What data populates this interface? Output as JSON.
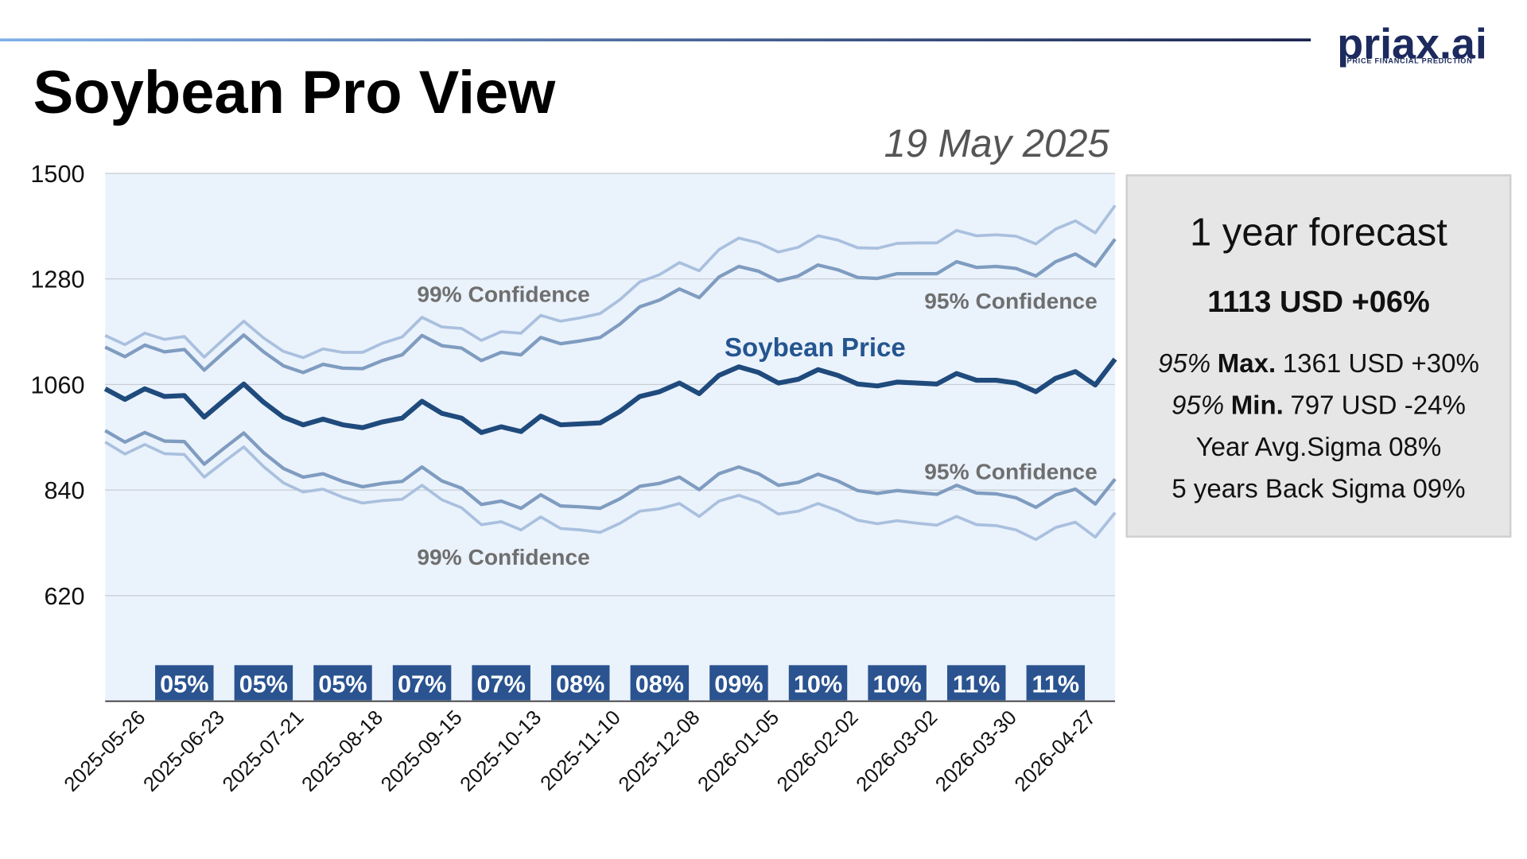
{
  "header": {
    "title": "Soybean Pro View",
    "date": "19 May 2025",
    "logo": "priax.ai",
    "logo_tagline": "PRICE FINANCIAL PREDICTION"
  },
  "panel": {
    "title": "1 year forecast",
    "headline": "1113 USD +06%",
    "lines": [
      {
        "italic": "95%",
        "bold": "Max.",
        "text": "1361 USD +30%"
      },
      {
        "italic": "95%",
        "bold": "Min.",
        "text": "797 USD -24%"
      },
      {
        "text": "Year Avg.Sigma 08%"
      },
      {
        "text": "5 years Back Sigma 09%"
      }
    ]
  },
  "chart_data": {
    "type": "line",
    "categories": [
      null,
      "2025-05-26",
      null,
      null,
      null,
      "2025-06-23",
      null,
      null,
      null,
      "2025-07-21",
      null,
      null,
      null,
      "2025-08-18",
      null,
      null,
      null,
      "2025-09-15",
      null,
      null,
      null,
      "2025-10-13",
      null,
      null,
      null,
      "2025-11-10",
      null,
      null,
      null,
      "2025-12-08",
      null,
      null,
      null,
      "2026-01-05",
      null,
      null,
      null,
      "2026-02-02",
      null,
      null,
      null,
      "2026-03-02",
      null,
      null,
      null,
      "2026-03-30",
      null,
      null,
      null,
      "2026-04-27",
      null,
      null
    ],
    "ylim": [
      400,
      1500
    ],
    "yticks": [
      620,
      840,
      1060,
      1280,
      1500
    ],
    "grid": true,
    "series": [
      {
        "name": "99% Confidence",
        "color": "#a9c0de",
        "values": [
          1162,
          1143,
          1167,
          1154,
          1160,
          1117,
          1155,
          1192,
          1157,
          1129,
          1116,
          1134,
          1127,
          1127,
          1146,
          1159,
          1200,
          1180,
          1177,
          1152,
          1170,
          1167,
          1204,
          1192,
          1199,
          1208,
          1237,
          1274,
          1289,
          1314,
          1297,
          1341,
          1365,
          1355,
          1336,
          1346,
          1370,
          1361,
          1345,
          1344,
          1354,
          1355,
          1355,
          1381,
          1370,
          1372,
          1369,
          1353,
          1384,
          1401,
          1376,
          1433
        ]
      },
      {
        "name": "95% Confidence",
        "color": "#7f9cc0",
        "values": [
          1138,
          1118,
          1142,
          1128,
          1133,
          1090,
          1127,
          1163,
          1128,
          1099,
          1085,
          1102,
          1094,
          1093,
          1110,
          1122,
          1162,
          1141,
          1136,
          1110,
          1127,
          1122,
          1158,
          1145,
          1151,
          1158,
          1186,
          1222,
          1236,
          1259,
          1241,
          1284,
          1306,
          1296,
          1276,
          1286,
          1309,
          1299,
          1283,
          1281,
          1291,
          1291,
          1291,
          1316,
          1304,
          1306,
          1302,
          1286,
          1316,
          1332,
          1307,
          1363
        ]
      },
      {
        "name": "Soybean Price",
        "color": "#1f4a7c",
        "values": [
          1051,
          1029,
          1051,
          1035,
          1037,
          992,
          1027,
          1061,
          1023,
          992,
          976,
          988,
          976,
          970,
          982,
          990,
          1025,
          1000,
          990,
          960,
          972,
          962,
          994,
          976,
          978,
          980,
          1004,
          1035,
          1045,
          1063,
          1041,
          1079,
          1097,
          1085,
          1063,
          1071,
          1091,
          1079,
          1061,
          1057,
          1065,
          1063,
          1061,
          1083,
          1069,
          1069,
          1063,
          1045,
          1073,
          1087,
          1059,
          1113
        ]
      },
      {
        "name": "95% Confidence",
        "color": "#7f9cc0",
        "values": [
          964,
          940,
          960,
          942,
          941,
          894,
          927,
          959,
          918,
          885,
          867,
          874,
          858,
          847,
          854,
          858,
          888,
          859,
          844,
          810,
          817,
          802,
          830,
          807,
          805,
          802,
          822,
          848,
          854,
          867,
          841,
          874,
          888,
          874,
          850,
          856,
          873,
          859,
          839,
          833,
          839,
          835,
          831,
          850,
          834,
          832,
          824,
          804,
          830,
          842,
          811,
          863
        ]
      },
      {
        "name": "99% Confidence",
        "color": "#a9c0de",
        "values": [
          940,
          915,
          935,
          916,
          914,
          867,
          899,
          930,
          889,
          855,
          836,
          842,
          825,
          813,
          818,
          821,
          850,
          820,
          803,
          768,
          774,
          757,
          784,
          760,
          757,
          752,
          771,
          796,
          801,
          812,
          785,
          817,
          829,
          815,
          790,
          796,
          812,
          797,
          777,
          770,
          776,
          771,
          767,
          785,
          768,
          766,
          757,
          737,
          762,
          773,
          742,
          793
        ]
      }
    ],
    "sigma_labels": [
      "05%",
      "05%",
      "05%",
      "07%",
      "07%",
      "08%",
      "08%",
      "09%",
      "10%",
      "10%",
      "11%",
      "11%"
    ]
  }
}
